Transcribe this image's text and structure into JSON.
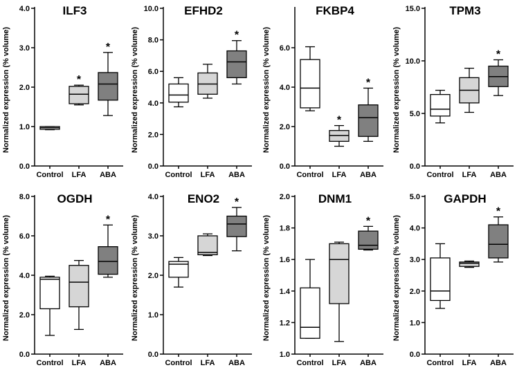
{
  "figure": {
    "ylabel": "Normalized expression (% volume)"
  },
  "chart_data": [
    {
      "type": "box",
      "title": "ILF3",
      "ylabel": "Normalized expression (% volume)",
      "ylim": [
        0,
        4
      ],
      "yticks": [
        "0.0",
        "1.0",
        "2.0",
        "3.0",
        "4.0"
      ],
      "categories": [
        "Control",
        "LFA",
        "ABA"
      ],
      "boxes": [
        {
          "name": "Control",
          "whisker_low": 0.92,
          "q1": 0.93,
          "median": 0.97,
          "q3": 1.0,
          "whisker_high": 1.0,
          "color": "#ffffff",
          "significant": false
        },
        {
          "name": "LFA",
          "whisker_low": 1.55,
          "q1": 1.58,
          "median": 1.82,
          "q3": 2.02,
          "whisker_high": 2.05,
          "color": "#d6d6d6",
          "significant": true
        },
        {
          "name": "ABA",
          "whisker_low": 1.28,
          "q1": 1.67,
          "median": 2.08,
          "q3": 2.37,
          "whisker_high": 2.88,
          "color": "#808080",
          "significant": true
        }
      ]
    },
    {
      "type": "box",
      "title": "EFHD2",
      "ylabel": "Normalized expression (% volume)",
      "ylim": [
        0,
        10
      ],
      "yticks": [
        "0.0",
        "2.0",
        "4.0",
        "6.0",
        "8.0",
        "10.0"
      ],
      "categories": [
        "Control",
        "LFA",
        "ABA"
      ],
      "boxes": [
        {
          "name": "Control",
          "whisker_low": 3.75,
          "q1": 4.05,
          "median": 4.5,
          "q3": 5.2,
          "whisker_high": 5.6,
          "color": "#ffffff",
          "significant": false
        },
        {
          "name": "LFA",
          "whisker_low": 4.3,
          "q1": 4.55,
          "median": 5.2,
          "q3": 5.9,
          "whisker_high": 6.45,
          "color": "#d6d6d6",
          "significant": false
        },
        {
          "name": "ABA",
          "whisker_low": 5.2,
          "q1": 5.6,
          "median": 6.6,
          "q3": 7.3,
          "whisker_high": 7.95,
          "color": "#808080",
          "significant": true
        }
      ]
    },
    {
      "type": "box",
      "title": "FKBP4",
      "ylabel": "Normalized expression (% volume)",
      "ylim": [
        0,
        8
      ],
      "yticks": [
        "0.0",
        "2.0",
        "4.0",
        "6.0"
      ],
      "categories": [
        "Control",
        "LFA",
        "ABA"
      ],
      "boxes": [
        {
          "name": "Control",
          "whisker_low": 2.8,
          "q1": 2.95,
          "median": 3.95,
          "q3": 5.4,
          "whisker_high": 6.05,
          "color": "#ffffff",
          "significant": false
        },
        {
          "name": "LFA",
          "whisker_low": 1.0,
          "q1": 1.25,
          "median": 1.55,
          "q3": 1.8,
          "whisker_high": 2.05,
          "color": "#d6d6d6",
          "significant": true
        },
        {
          "name": "ABA",
          "whisker_low": 1.25,
          "q1": 1.5,
          "median": 2.45,
          "q3": 3.1,
          "whisker_high": 3.95,
          "color": "#808080",
          "significant": true
        }
      ]
    },
    {
      "type": "box",
      "title": "TPM3",
      "ylabel": "Normalized expression (% volume)",
      "ylim": [
        0,
        15
      ],
      "yticks": [
        "0.0",
        "5.0",
        "10.0",
        "15.0"
      ],
      "categories": [
        "Control",
        "LFA",
        "ABA"
      ],
      "boxes": [
        {
          "name": "Control",
          "whisker_low": 4.1,
          "q1": 4.75,
          "median": 5.4,
          "q3": 6.8,
          "whisker_high": 7.2,
          "color": "#ffffff",
          "significant": false
        },
        {
          "name": "LFA",
          "whisker_low": 5.1,
          "q1": 6.0,
          "median": 7.2,
          "q3": 8.4,
          "whisker_high": 9.3,
          "color": "#d6d6d6",
          "significant": false
        },
        {
          "name": "ABA",
          "whisker_low": 6.7,
          "q1": 7.55,
          "median": 8.5,
          "q3": 9.5,
          "whisker_high": 10.1,
          "color": "#808080",
          "significant": true
        }
      ]
    },
    {
      "type": "box",
      "title": "OGDH",
      "ylabel": "Normalized expression (% volume)",
      "ylim": [
        0,
        8
      ],
      "yticks": [
        "0.0",
        "2.0",
        "4.0",
        "6.0",
        "8.0"
      ],
      "categories": [
        "Control",
        "LFA",
        "ABA"
      ],
      "boxes": [
        {
          "name": "Control",
          "whisker_low": 0.95,
          "q1": 2.3,
          "median": 3.8,
          "q3": 3.9,
          "whisker_high": 3.95,
          "color": "#ffffff",
          "significant": false
        },
        {
          "name": "LFA",
          "whisker_low": 1.25,
          "q1": 2.4,
          "median": 3.65,
          "q3": 4.5,
          "whisker_high": 4.75,
          "color": "#d6d6d6",
          "significant": false
        },
        {
          "name": "ABA",
          "whisker_low": 3.9,
          "q1": 4.05,
          "median": 4.7,
          "q3": 5.45,
          "whisker_high": 6.55,
          "color": "#808080",
          "significant": true
        }
      ]
    },
    {
      "type": "box",
      "title": "ENO2",
      "ylabel": "Normalized expression (% volume)",
      "ylim": [
        0,
        4
      ],
      "yticks": [
        "0.0",
        "1.0",
        "2.0",
        "3.0",
        "4.0"
      ],
      "categories": [
        "Control",
        "LFA",
        "ABA"
      ],
      "boxes": [
        {
          "name": "Control",
          "whisker_low": 1.7,
          "q1": 1.95,
          "median": 2.28,
          "q3": 2.35,
          "whisker_high": 2.45,
          "color": "#ffffff",
          "significant": false
        },
        {
          "name": "LFA",
          "whisker_low": 2.5,
          "q1": 2.52,
          "median": 2.58,
          "q3": 3.0,
          "whisker_high": 3.05,
          "color": "#d6d6d6",
          "significant": false
        },
        {
          "name": "ABA",
          "whisker_low": 2.62,
          "q1": 2.98,
          "median": 3.3,
          "q3": 3.5,
          "whisker_high": 3.72,
          "color": "#808080",
          "significant": true
        }
      ]
    },
    {
      "type": "box",
      "title": "DNM1",
      "ylabel": "Normalized expression (% volume)",
      "ylim": [
        1.0,
        2.0
      ],
      "yticks": [
        "1.0",
        "1.2",
        "1.4",
        "1.6",
        "1.8",
        "2.0"
      ],
      "categories": [
        "Control",
        "LFA",
        "ABA"
      ],
      "boxes": [
        {
          "name": "Control",
          "whisker_low": 1.1,
          "q1": 1.1,
          "median": 1.17,
          "q3": 1.42,
          "whisker_high": 1.6,
          "color": "#ffffff",
          "significant": false
        },
        {
          "name": "LFA",
          "whisker_low": 1.08,
          "q1": 1.32,
          "median": 1.6,
          "q3": 1.7,
          "whisker_high": 1.71,
          "color": "#d6d6d6",
          "significant": false
        },
        {
          "name": "ABA",
          "whisker_low": 1.66,
          "q1": 1.665,
          "median": 1.69,
          "q3": 1.78,
          "whisker_high": 1.81,
          "color": "#808080",
          "significant": true
        }
      ]
    },
    {
      "type": "box",
      "title": "GAPDH",
      "ylabel": "Normalized expression (% volume)",
      "ylim": [
        0,
        5
      ],
      "yticks": [
        "0.0",
        "1.0",
        "2.0",
        "3.0",
        "4.0",
        "5.0"
      ],
      "categories": [
        "Control",
        "LFA",
        "ABA"
      ],
      "boxes": [
        {
          "name": "Control",
          "whisker_low": 1.45,
          "q1": 1.7,
          "median": 2.0,
          "q3": 3.05,
          "whisker_high": 3.5,
          "color": "#ffffff",
          "significant": false
        },
        {
          "name": "LFA",
          "whisker_low": 2.75,
          "q1": 2.78,
          "median": 2.88,
          "q3": 2.92,
          "whisker_high": 2.95,
          "color": "#d6d6d6",
          "significant": false
        },
        {
          "name": "ABA",
          "whisker_low": 2.92,
          "q1": 3.05,
          "median": 3.48,
          "q3": 4.1,
          "whisker_high": 4.35,
          "color": "#808080",
          "significant": true
        }
      ]
    }
  ]
}
